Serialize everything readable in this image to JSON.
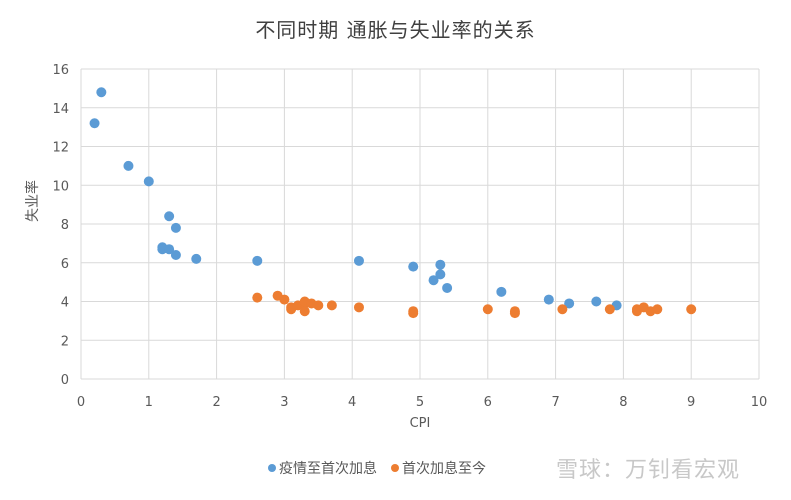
{
  "chart_data": {
    "type": "scatter",
    "title": "不同时期 通胀与失业率的关系",
    "xlabel": "CPI",
    "ylabel": "失业率",
    "xlim": [
      0,
      10
    ],
    "ylim": [
      0,
      16
    ],
    "x_ticks": [
      0,
      1,
      2,
      3,
      4,
      5,
      6,
      7,
      8,
      9,
      10
    ],
    "y_ticks": [
      0,
      2,
      4,
      6,
      8,
      10,
      12,
      14,
      16
    ],
    "grid": true,
    "legend_position": "bottom",
    "series": [
      {
        "name": "疫情至首次加息",
        "color": "#5B9BD5",
        "points": [
          [
            0.2,
            13.2
          ],
          [
            0.3,
            14.8
          ],
          [
            0.7,
            11.0
          ],
          [
            1.0,
            10.2
          ],
          [
            1.3,
            8.4
          ],
          [
            1.4,
            7.8
          ],
          [
            1.2,
            6.8
          ],
          [
            1.2,
            6.7
          ],
          [
            1.3,
            6.7
          ],
          [
            1.4,
            6.4
          ],
          [
            1.7,
            6.2
          ],
          [
            2.6,
            6.1
          ],
          [
            4.1,
            6.1
          ],
          [
            4.9,
            5.8
          ],
          [
            5.3,
            5.9
          ],
          [
            5.3,
            5.4
          ],
          [
            5.2,
            5.1
          ],
          [
            5.4,
            4.7
          ],
          [
            6.2,
            4.5
          ],
          [
            6.9,
            4.1
          ],
          [
            7.2,
            3.9
          ],
          [
            7.6,
            4.0
          ],
          [
            7.9,
            3.8
          ]
        ]
      },
      {
        "name": "首次加息至今",
        "color": "#ED7D31",
        "points": [
          [
            2.6,
            4.2
          ],
          [
            2.9,
            4.3
          ],
          [
            3.0,
            4.1
          ],
          [
            3.1,
            3.7
          ],
          [
            3.1,
            3.6
          ],
          [
            3.2,
            3.8
          ],
          [
            3.3,
            3.9
          ],
          [
            3.3,
            3.5
          ],
          [
            3.3,
            4.0
          ],
          [
            3.4,
            3.9
          ],
          [
            3.5,
            3.8
          ],
          [
            3.7,
            3.8
          ],
          [
            4.1,
            3.7
          ],
          [
            4.9,
            3.5
          ],
          [
            4.9,
            3.4
          ],
          [
            6.0,
            3.6
          ],
          [
            6.4,
            3.5
          ],
          [
            6.4,
            3.4
          ],
          [
            7.1,
            3.6
          ],
          [
            7.8,
            3.6
          ],
          [
            8.2,
            3.6
          ],
          [
            8.2,
            3.5
          ],
          [
            8.3,
            3.7
          ],
          [
            8.4,
            3.5
          ],
          [
            8.5,
            3.6
          ],
          [
            9.0,
            3.6
          ]
        ]
      }
    ]
  },
  "legend": {
    "items": [
      {
        "label": "疫情至首次加息",
        "color": "#5B9BD5"
      },
      {
        "label": "首次加息至今",
        "color": "#ED7D31"
      }
    ]
  },
  "watermark": "雪球：万钊看宏观"
}
